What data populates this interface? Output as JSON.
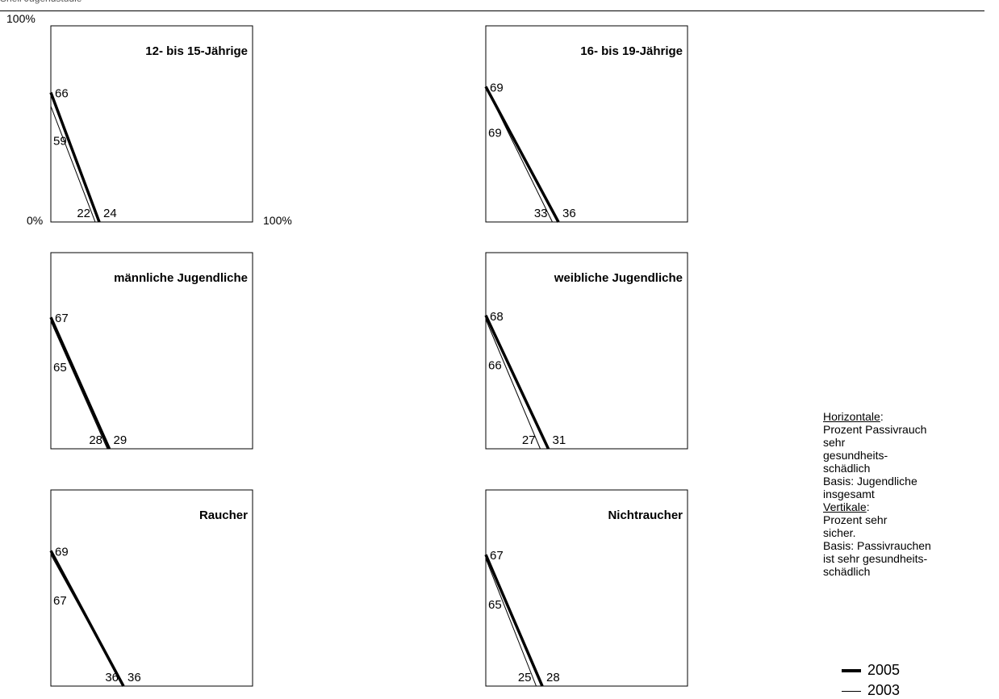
{
  "chart_data": {
    "type": "line",
    "series_names": [
      "2005",
      "2003"
    ],
    "axis": {
      "y_top_label": "100%",
      "origin_label": "0%",
      "x_right_label": "100%",
      "xlim": [
        0,
        100
      ],
      "ylim": [
        0,
        100
      ]
    },
    "panels": [
      {
        "title": "12- bis 15-Jährige",
        "s2005": {
          "x": 24,
          "y": 66
        },
        "s2003": {
          "x": 22,
          "y": 59
        }
      },
      {
        "title": "16- bis 19-Jährige",
        "s2005": {
          "x": 36,
          "y": 69
        },
        "s2003": {
          "x": 33,
          "y": 69
        }
      },
      {
        "title": "männliche Jugendliche",
        "s2005": {
          "x": 29,
          "y": 67
        },
        "s2003": {
          "x": 28,
          "y": 65
        }
      },
      {
        "title": "weibliche Jugendliche",
        "s2005": {
          "x": 31,
          "y": 68
        },
        "s2003": {
          "x": 27,
          "y": 66
        }
      },
      {
        "title": "Raucher",
        "s2005": {
          "x": 36,
          "y": 69
        },
        "s2003": {
          "x": 36,
          "y": 67
        }
      },
      {
        "title": "Nichtraucher",
        "s2005": {
          "x": 28,
          "y": 67
        },
        "s2003": {
          "x": 25,
          "y": 65
        }
      }
    ]
  },
  "legend": {
    "horizontal_heading": "Horizontale",
    "horizontal_lines": [
      "Prozent Passivrauch",
      "sehr",
      "gesundheits-",
      "schädlich",
      "Basis: Jugendliche",
      "insgesamt"
    ],
    "vertical_heading": "Vertikale",
    "vertical_lines": [
      "Prozent sehr",
      "sicher.",
      "Basis: Passivrauchen",
      "ist sehr gesundheits-",
      "schädlich"
    ],
    "key_2005": "2005",
    "key_2003": "2003"
  }
}
